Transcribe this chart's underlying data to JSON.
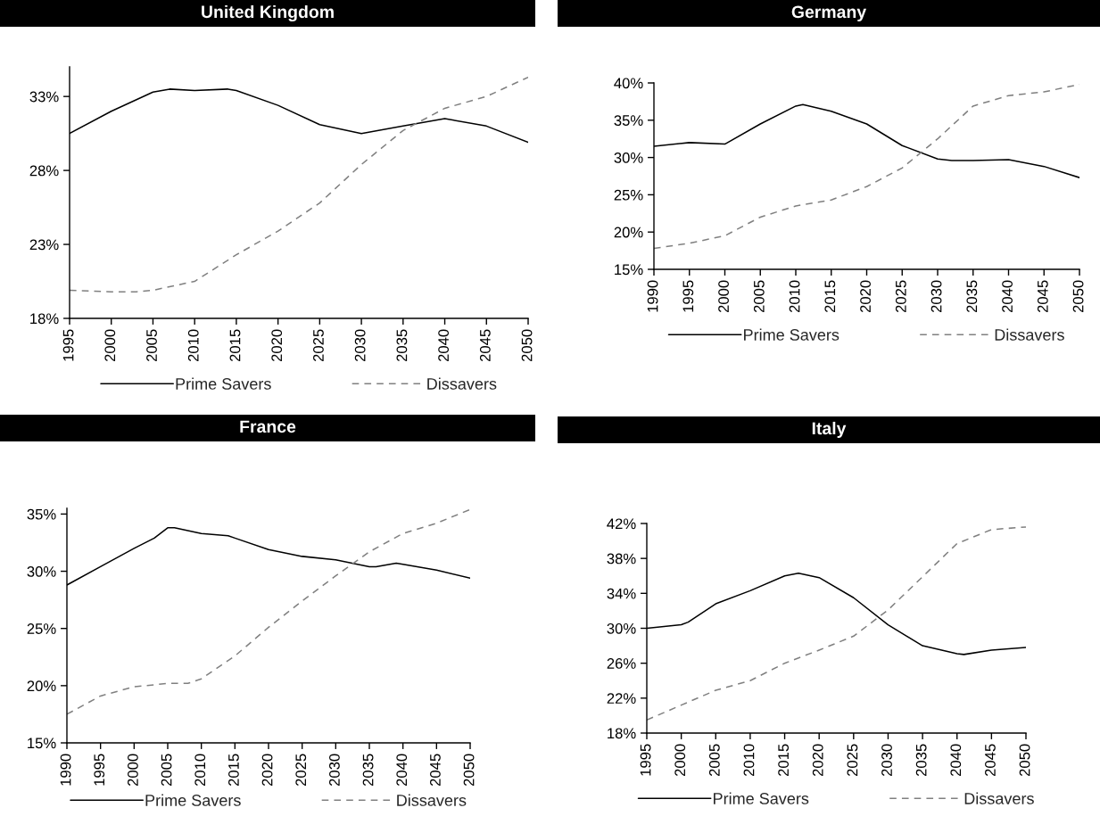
{
  "chart_data": [
    {
      "type": "line",
      "title": "United Kingdom",
      "xlim": [
        1995,
        2050
      ],
      "xticks": [
        1995,
        2000,
        2005,
        2010,
        2015,
        2020,
        2025,
        2030,
        2035,
        2040,
        2045,
        2050
      ],
      "ylim": [
        18,
        35
      ],
      "yticks": [
        {
          "value": 18,
          "label": "18%"
        },
        {
          "value": 23,
          "label": "23%"
        },
        {
          "value": 28,
          "label": "28%"
        },
        {
          "value": 33,
          "label": "33%"
        }
      ],
      "grid": false,
      "legend": "bottom",
      "series": [
        {
          "name": "Prime Savers",
          "color": "#000000",
          "line_style": "solid",
          "x": [
            1995,
            2000,
            2005,
            2007,
            2010,
            2014,
            2015,
            2020,
            2025,
            2030,
            2035,
            2040,
            2045,
            2050
          ],
          "values": [
            30.5,
            32.0,
            33.3,
            33.5,
            33.4,
            33.5,
            33.4,
            32.4,
            31.1,
            30.5,
            31.0,
            31.5,
            31.0,
            29.9
          ]
        },
        {
          "name": "Dissavers",
          "color": "#808080",
          "line_style": "dashed",
          "x": [
            1995,
            2000,
            2003,
            2005,
            2010,
            2015,
            2020,
            2025,
            2030,
            2035,
            2040,
            2045,
            2050
          ],
          "values": [
            19.9,
            19.8,
            19.8,
            19.9,
            20.5,
            22.3,
            23.9,
            25.8,
            28.4,
            30.7,
            32.2,
            33.0,
            34.3
          ]
        }
      ]
    },
    {
      "type": "line",
      "title": "Germany",
      "xlim": [
        1990,
        2050
      ],
      "xticks": [
        1990,
        1995,
        2000,
        2005,
        2010,
        2015,
        2020,
        2025,
        2030,
        2035,
        2040,
        2045,
        2050
      ],
      "ylim": [
        15,
        40
      ],
      "yticks": [
        {
          "value": 15,
          "label": "15%"
        },
        {
          "value": 20,
          "label": "20%"
        },
        {
          "value": 25,
          "label": "25%"
        },
        {
          "value": 30,
          "label": "30%"
        },
        {
          "value": 35,
          "label": "35%"
        },
        {
          "value": 40,
          "label": "40%"
        }
      ],
      "grid": false,
      "legend": "bottom",
      "series": [
        {
          "name": "Prime Savers",
          "color": "#000000",
          "line_style": "solid",
          "x": [
            1990,
            1995,
            2000,
            2005,
            2010,
            2011,
            2015,
            2020,
            2025,
            2030,
            2032,
            2035,
            2040,
            2045,
            2050
          ],
          "values": [
            31.5,
            32.0,
            31.8,
            34.5,
            36.9,
            37.1,
            36.2,
            34.5,
            31.6,
            29.8,
            29.6,
            29.6,
            29.7,
            28.8,
            27.3
          ]
        },
        {
          "name": "Dissavers",
          "color": "#808080",
          "line_style": "dashed",
          "x": [
            1990,
            1995,
            2000,
            2005,
            2010,
            2015,
            2020,
            2025,
            2030,
            2035,
            2040,
            2045,
            2050
          ],
          "values": [
            17.8,
            18.5,
            19.5,
            22.0,
            23.5,
            24.3,
            26.1,
            28.6,
            32.5,
            36.9,
            38.3,
            38.8,
            39.8
          ]
        }
      ]
    },
    {
      "type": "line",
      "title": "France",
      "xlim": [
        1990,
        2050
      ],
      "xticks": [
        1990,
        1995,
        2000,
        2005,
        2010,
        2015,
        2020,
        2025,
        2030,
        2035,
        2040,
        2045,
        2050
      ],
      "ylim": [
        15,
        35.5
      ],
      "yticks": [
        {
          "value": 15,
          "label": "15%"
        },
        {
          "value": 20,
          "label": "20%"
        },
        {
          "value": 25,
          "label": "25%"
        },
        {
          "value": 30,
          "label": "30%"
        },
        {
          "value": 35,
          "label": "35%"
        }
      ],
      "grid": false,
      "legend": "bottom",
      "series": [
        {
          "name": "Prime Savers",
          "color": "#000000",
          "line_style": "solid",
          "x": [
            1990,
            1995,
            2000,
            2003,
            2005,
            2006,
            2010,
            2014,
            2015,
            2020,
            2025,
            2030,
            2035,
            2036,
            2039,
            2040,
            2045,
            2050
          ],
          "values": [
            28.8,
            30.4,
            32.0,
            32.9,
            33.8,
            33.8,
            33.3,
            33.1,
            32.9,
            31.9,
            31.3,
            31.0,
            30.4,
            30.4,
            30.7,
            30.6,
            30.1,
            29.4
          ]
        },
        {
          "name": "Dissavers",
          "color": "#808080",
          "line_style": "dashed",
          "x": [
            1990,
            1995,
            2000,
            2005,
            2008,
            2010,
            2015,
            2020,
            2025,
            2030,
            2035,
            2040,
            2045,
            2050
          ],
          "values": [
            17.5,
            19.1,
            19.9,
            20.2,
            20.2,
            20.6,
            22.6,
            25.1,
            27.4,
            29.6,
            31.7,
            33.3,
            34.2,
            35.4
          ]
        }
      ]
    },
    {
      "type": "line",
      "title": "Italy",
      "xlim": [
        1995,
        2050
      ],
      "xticks": [
        1995,
        2000,
        2005,
        2010,
        2015,
        2020,
        2025,
        2030,
        2035,
        2040,
        2045,
        2050
      ],
      "ylim": [
        18,
        42
      ],
      "yticks": [
        {
          "value": 18,
          "label": "18%"
        },
        {
          "value": 22,
          "label": "22%"
        },
        {
          "value": 26,
          "label": "26%"
        },
        {
          "value": 30,
          "label": "30%"
        },
        {
          "value": 34,
          "label": "34%"
        },
        {
          "value": 38,
          "label": "38%"
        },
        {
          "value": 42,
          "label": "42%"
        }
      ],
      "grid": false,
      "legend": "bottom",
      "series": [
        {
          "name": "Prime Savers",
          "color": "#000000",
          "line_style": "solid",
          "x": [
            1995,
            2000,
            2001,
            2005,
            2010,
            2015,
            2017,
            2020,
            2025,
            2030,
            2035,
            2040,
            2041,
            2045,
            2050
          ],
          "values": [
            30.0,
            30.4,
            30.7,
            32.8,
            34.3,
            36.0,
            36.3,
            35.8,
            33.5,
            30.4,
            28.0,
            27.1,
            27.0,
            27.5,
            27.8
          ]
        },
        {
          "name": "Dissavers",
          "color": "#808080",
          "line_style": "dashed",
          "x": [
            1995,
            2000,
            2005,
            2010,
            2015,
            2020,
            2025,
            2030,
            2035,
            2040,
            2045,
            2050
          ],
          "values": [
            19.5,
            21.2,
            22.9,
            24.0,
            26.0,
            27.5,
            29.1,
            32.1,
            35.9,
            39.7,
            41.3,
            41.6
          ]
        }
      ]
    }
  ]
}
